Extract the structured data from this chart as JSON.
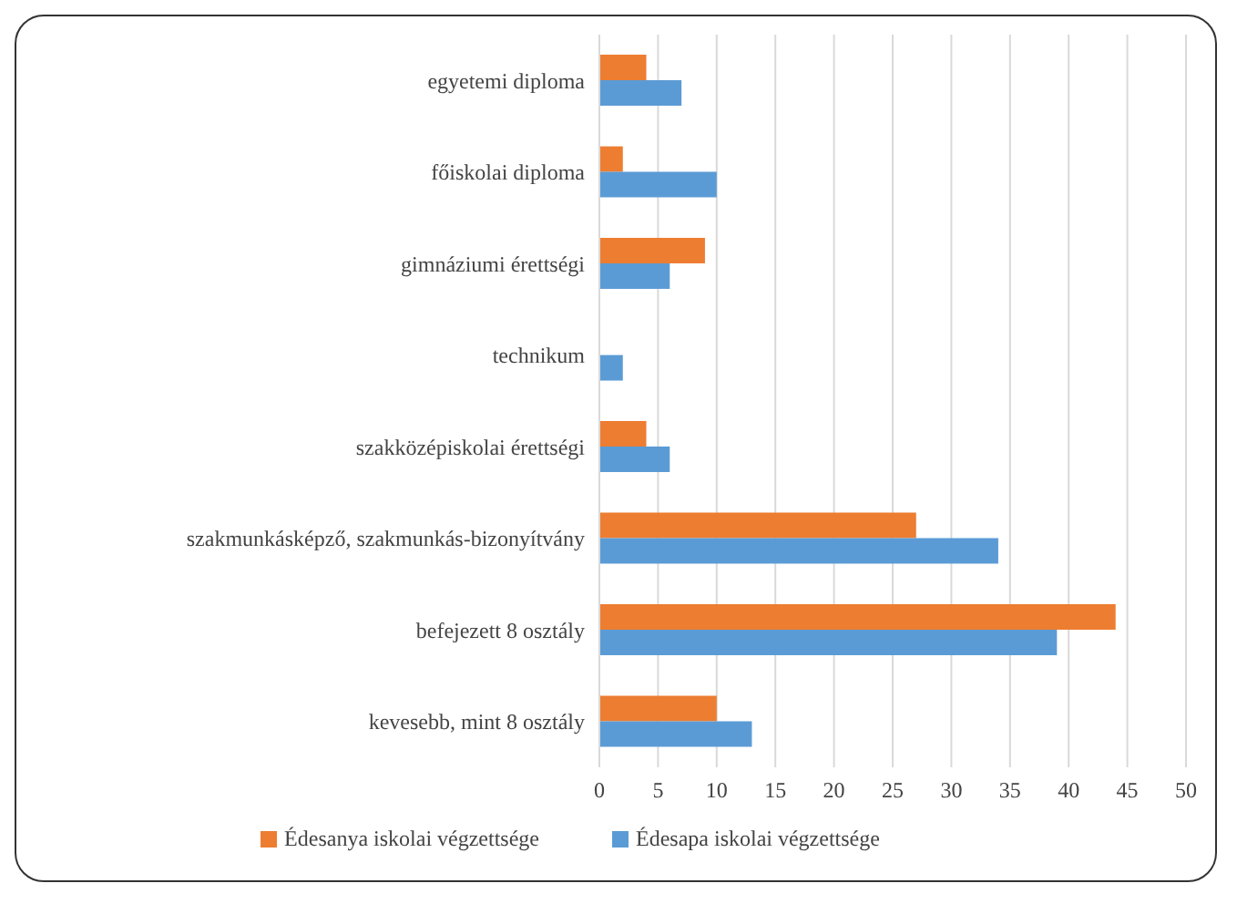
{
  "chart_data": {
    "type": "bar",
    "orientation": "horizontal",
    "categories": [
      "egyetemi diploma",
      "főiskolai diploma",
      "gimnáziumi érettségi",
      "technikum",
      "szakközépiskolai érettségi",
      "szakmunkásképző, szakmunkás-bizonyítvány",
      "befejezett 8 osztály",
      "kevesebb, mint 8 osztály"
    ],
    "series": [
      {
        "name": "Édesanya iskolai végzettsége",
        "color": "#ed7d31",
        "values": [
          4,
          2,
          9,
          0,
          4,
          27,
          44,
          10
        ]
      },
      {
        "name": "Édesapa iskolai végzettsége",
        "color": "#5b9bd5",
        "values": [
          7,
          10,
          6,
          2,
          6,
          34,
          39,
          13
        ]
      }
    ],
    "xlim": [
      0,
      50
    ],
    "xticks": [
      0,
      5,
      10,
      15,
      20,
      25,
      30,
      35,
      40,
      45,
      50
    ],
    "grid": "x",
    "legend": "bottom"
  }
}
